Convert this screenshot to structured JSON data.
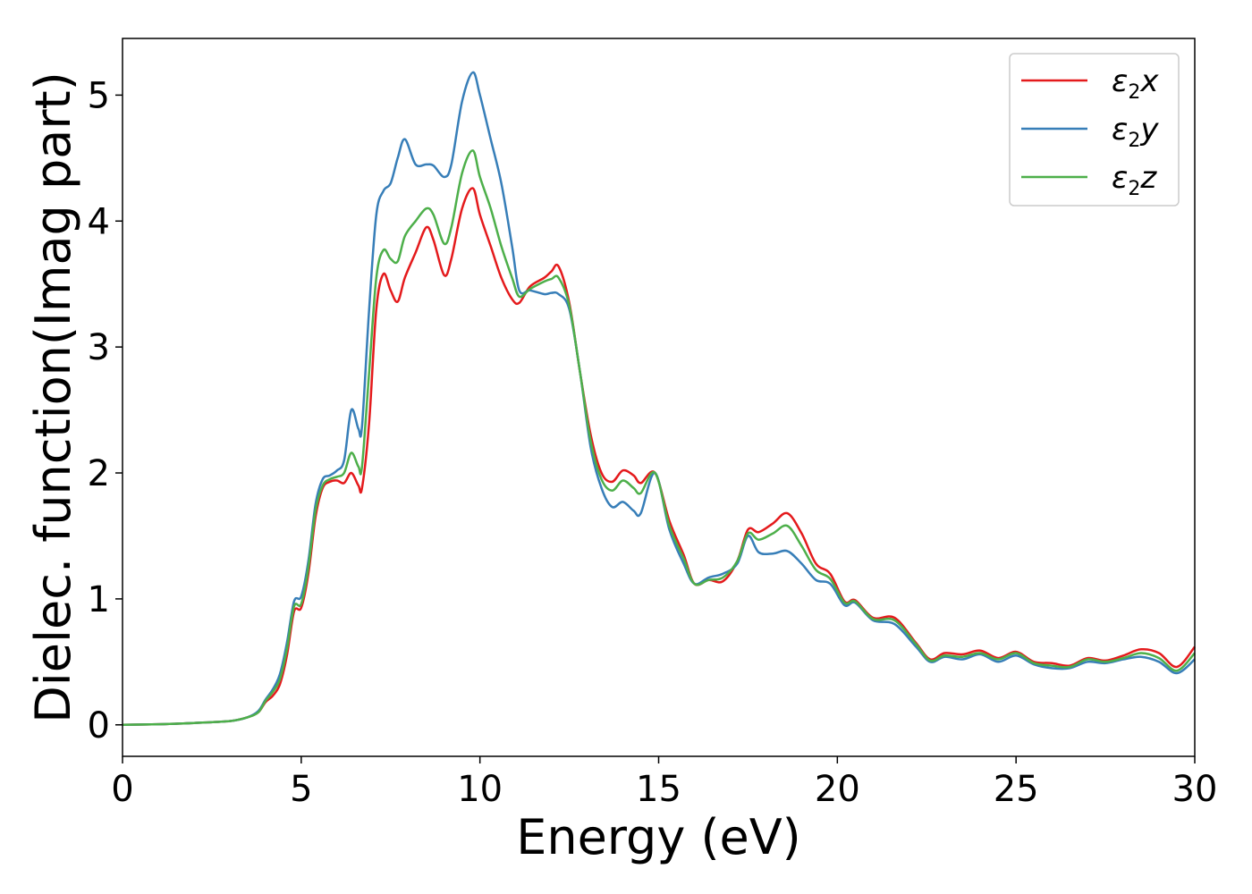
{
  "chart_data": {
    "type": "line",
    "xlabel": "Energy (eV)",
    "ylabel": "Dielec. function(Imag part)",
    "xlim": [
      0,
      30
    ],
    "ylim": [
      -0.25,
      5.45
    ],
    "xticks": [
      0,
      5,
      10,
      15,
      20,
      25,
      30
    ],
    "yticks": [
      0,
      1,
      2,
      3,
      4,
      5
    ],
    "grid": false,
    "legend_position": "top-right",
    "series": [
      {
        "name": "ε₂x",
        "legend_base": "ε",
        "legend_sub": "2",
        "legend_var": "x",
        "color": "#e41a1c",
        "points": [
          [
            0,
            0
          ],
          [
            1,
            0.005
          ],
          [
            2,
            0.015
          ],
          [
            3,
            0.03
          ],
          [
            3.5,
            0.06
          ],
          [
            3.8,
            0.1
          ],
          [
            4.0,
            0.18
          ],
          [
            4.2,
            0.23
          ],
          [
            4.4,
            0.32
          ],
          [
            4.6,
            0.55
          ],
          [
            4.8,
            0.9
          ],
          [
            5.0,
            0.93
          ],
          [
            5.2,
            1.2
          ],
          [
            5.4,
            1.65
          ],
          [
            5.6,
            1.88
          ],
          [
            5.8,
            1.93
          ],
          [
            6.0,
            1.94
          ],
          [
            6.2,
            1.92
          ],
          [
            6.4,
            2.0
          ],
          [
            6.6,
            1.9
          ],
          [
            6.7,
            1.88
          ],
          [
            6.9,
            2.4
          ],
          [
            7.1,
            3.3
          ],
          [
            7.3,
            3.58
          ],
          [
            7.5,
            3.45
          ],
          [
            7.7,
            3.36
          ],
          [
            7.9,
            3.55
          ],
          [
            8.2,
            3.75
          ],
          [
            8.5,
            3.95
          ],
          [
            8.7,
            3.85
          ],
          [
            9.0,
            3.57
          ],
          [
            9.2,
            3.7
          ],
          [
            9.5,
            4.1
          ],
          [
            9.8,
            4.26
          ],
          [
            10.0,
            4.05
          ],
          [
            10.3,
            3.8
          ],
          [
            10.6,
            3.55
          ],
          [
            10.9,
            3.38
          ],
          [
            11.1,
            3.35
          ],
          [
            11.4,
            3.48
          ],
          [
            11.8,
            3.55
          ],
          [
            12.0,
            3.6
          ],
          [
            12.2,
            3.64
          ],
          [
            12.5,
            3.35
          ],
          [
            12.8,
            2.8
          ],
          [
            13.1,
            2.3
          ],
          [
            13.4,
            2.0
          ],
          [
            13.7,
            1.93
          ],
          [
            14.0,
            2.02
          ],
          [
            14.3,
            1.98
          ],
          [
            14.5,
            1.92
          ],
          [
            14.9,
            2.0
          ],
          [
            15.3,
            1.62
          ],
          [
            15.7,
            1.35
          ],
          [
            16.0,
            1.12
          ],
          [
            16.4,
            1.15
          ],
          [
            16.8,
            1.14
          ],
          [
            17.2,
            1.3
          ],
          [
            17.5,
            1.55
          ],
          [
            17.8,
            1.53
          ],
          [
            18.2,
            1.6
          ],
          [
            18.6,
            1.68
          ],
          [
            19.0,
            1.52
          ],
          [
            19.4,
            1.28
          ],
          [
            19.8,
            1.2
          ],
          [
            20.2,
            0.98
          ],
          [
            20.5,
            0.99
          ],
          [
            21.0,
            0.85
          ],
          [
            21.6,
            0.85
          ],
          [
            22.2,
            0.65
          ],
          [
            22.6,
            0.52
          ],
          [
            23.0,
            0.57
          ],
          [
            23.5,
            0.56
          ],
          [
            24.0,
            0.59
          ],
          [
            24.5,
            0.53
          ],
          [
            25.0,
            0.58
          ],
          [
            25.5,
            0.5
          ],
          [
            26.0,
            0.49
          ],
          [
            26.5,
            0.47
          ],
          [
            27.0,
            0.53
          ],
          [
            27.5,
            0.51
          ],
          [
            28.0,
            0.55
          ],
          [
            28.5,
            0.6
          ],
          [
            29.0,
            0.57
          ],
          [
            29.5,
            0.46
          ],
          [
            30.0,
            0.62
          ]
        ]
      },
      {
        "name": "ε₂y",
        "legend_base": "ε",
        "legend_sub": "2",
        "legend_var": "y",
        "color": "#377eb8",
        "points": [
          [
            0,
            0
          ],
          [
            1,
            0.005
          ],
          [
            2,
            0.015
          ],
          [
            3,
            0.03
          ],
          [
            3.5,
            0.06
          ],
          [
            3.8,
            0.11
          ],
          [
            4.0,
            0.2
          ],
          [
            4.2,
            0.28
          ],
          [
            4.4,
            0.4
          ],
          [
            4.6,
            0.65
          ],
          [
            4.8,
            0.98
          ],
          [
            5.0,
            1.02
          ],
          [
            5.2,
            1.3
          ],
          [
            5.4,
            1.75
          ],
          [
            5.6,
            1.95
          ],
          [
            5.8,
            1.98
          ],
          [
            6.0,
            2.02
          ],
          [
            6.2,
            2.1
          ],
          [
            6.4,
            2.5
          ],
          [
            6.6,
            2.35
          ],
          [
            6.7,
            2.37
          ],
          [
            6.9,
            3.3
          ],
          [
            7.1,
            4.05
          ],
          [
            7.3,
            4.24
          ],
          [
            7.5,
            4.3
          ],
          [
            7.7,
            4.5
          ],
          [
            7.9,
            4.65
          ],
          [
            8.2,
            4.45
          ],
          [
            8.5,
            4.45
          ],
          [
            8.7,
            4.44
          ],
          [
            9.0,
            4.35
          ],
          [
            9.2,
            4.45
          ],
          [
            9.5,
            4.95
          ],
          [
            9.8,
            5.18
          ],
          [
            10.0,
            5.0
          ],
          [
            10.3,
            4.65
          ],
          [
            10.6,
            4.3
          ],
          [
            10.9,
            3.8
          ],
          [
            11.1,
            3.45
          ],
          [
            11.4,
            3.45
          ],
          [
            11.8,
            3.42
          ],
          [
            12.0,
            3.43
          ],
          [
            12.2,
            3.42
          ],
          [
            12.5,
            3.3
          ],
          [
            12.8,
            2.8
          ],
          [
            13.1,
            2.2
          ],
          [
            13.4,
            1.88
          ],
          [
            13.7,
            1.73
          ],
          [
            14.0,
            1.77
          ],
          [
            14.3,
            1.7
          ],
          [
            14.5,
            1.68
          ],
          [
            14.9,
            2.0
          ],
          [
            15.3,
            1.55
          ],
          [
            15.7,
            1.28
          ],
          [
            16.0,
            1.12
          ],
          [
            16.4,
            1.17
          ],
          [
            16.8,
            1.2
          ],
          [
            17.2,
            1.28
          ],
          [
            17.5,
            1.5
          ],
          [
            17.8,
            1.37
          ],
          [
            18.2,
            1.36
          ],
          [
            18.6,
            1.38
          ],
          [
            19.0,
            1.28
          ],
          [
            19.4,
            1.15
          ],
          [
            19.8,
            1.12
          ],
          [
            20.2,
            0.95
          ],
          [
            20.5,
            0.97
          ],
          [
            21.0,
            0.83
          ],
          [
            21.6,
            0.8
          ],
          [
            22.2,
            0.62
          ],
          [
            22.6,
            0.5
          ],
          [
            23.0,
            0.54
          ],
          [
            23.5,
            0.52
          ],
          [
            24.0,
            0.56
          ],
          [
            24.5,
            0.5
          ],
          [
            25.0,
            0.55
          ],
          [
            25.5,
            0.48
          ],
          [
            26.0,
            0.45
          ],
          [
            26.5,
            0.45
          ],
          [
            27.0,
            0.5
          ],
          [
            27.5,
            0.49
          ],
          [
            28.0,
            0.52
          ],
          [
            28.5,
            0.54
          ],
          [
            29.0,
            0.5
          ],
          [
            29.5,
            0.41
          ],
          [
            30.0,
            0.52
          ]
        ]
      },
      {
        "name": "ε₂z",
        "legend_base": "ε",
        "legend_sub": "2",
        "legend_var": "z",
        "color": "#4daf4a",
        "points": [
          [
            0,
            0
          ],
          [
            1,
            0.005
          ],
          [
            2,
            0.015
          ],
          [
            3,
            0.03
          ],
          [
            3.5,
            0.06
          ],
          [
            3.8,
            0.1
          ],
          [
            4.0,
            0.19
          ],
          [
            4.2,
            0.26
          ],
          [
            4.4,
            0.36
          ],
          [
            4.6,
            0.6
          ],
          [
            4.8,
            0.94
          ],
          [
            5.0,
            0.96
          ],
          [
            5.2,
            1.25
          ],
          [
            5.4,
            1.7
          ],
          [
            5.6,
            1.9
          ],
          [
            5.8,
            1.95
          ],
          [
            6.0,
            1.97
          ],
          [
            6.2,
            2.0
          ],
          [
            6.4,
            2.16
          ],
          [
            6.6,
            2.05
          ],
          [
            6.7,
            2.05
          ],
          [
            6.9,
            2.8
          ],
          [
            7.1,
            3.55
          ],
          [
            7.3,
            3.77
          ],
          [
            7.5,
            3.7
          ],
          [
            7.7,
            3.68
          ],
          [
            7.9,
            3.88
          ],
          [
            8.2,
            4.0
          ],
          [
            8.5,
            4.1
          ],
          [
            8.7,
            4.05
          ],
          [
            9.0,
            3.82
          ],
          [
            9.2,
            3.95
          ],
          [
            9.5,
            4.38
          ],
          [
            9.8,
            4.56
          ],
          [
            10.0,
            4.35
          ],
          [
            10.3,
            4.1
          ],
          [
            10.6,
            3.8
          ],
          [
            10.9,
            3.55
          ],
          [
            11.1,
            3.4
          ],
          [
            11.4,
            3.46
          ],
          [
            11.8,
            3.52
          ],
          [
            12.0,
            3.54
          ],
          [
            12.2,
            3.55
          ],
          [
            12.5,
            3.33
          ],
          [
            12.8,
            2.8
          ],
          [
            13.1,
            2.25
          ],
          [
            13.4,
            1.95
          ],
          [
            13.7,
            1.86
          ],
          [
            14.0,
            1.94
          ],
          [
            14.3,
            1.88
          ],
          [
            14.5,
            1.84
          ],
          [
            14.9,
            2.0
          ],
          [
            15.3,
            1.58
          ],
          [
            15.7,
            1.32
          ],
          [
            16.0,
            1.12
          ],
          [
            16.4,
            1.15
          ],
          [
            16.8,
            1.17
          ],
          [
            17.2,
            1.3
          ],
          [
            17.5,
            1.52
          ],
          [
            17.8,
            1.47
          ],
          [
            18.2,
            1.52
          ],
          [
            18.6,
            1.58
          ],
          [
            19.0,
            1.42
          ],
          [
            19.4,
            1.23
          ],
          [
            19.8,
            1.16
          ],
          [
            20.2,
            0.97
          ],
          [
            20.5,
            0.98
          ],
          [
            21.0,
            0.84
          ],
          [
            21.6,
            0.83
          ],
          [
            22.2,
            0.64
          ],
          [
            22.6,
            0.51
          ],
          [
            23.0,
            0.55
          ],
          [
            23.5,
            0.54
          ],
          [
            24.0,
            0.57
          ],
          [
            24.5,
            0.52
          ],
          [
            25.0,
            0.57
          ],
          [
            25.5,
            0.49
          ],
          [
            26.0,
            0.47
          ],
          [
            26.5,
            0.46
          ],
          [
            27.0,
            0.52
          ],
          [
            27.5,
            0.5
          ],
          [
            28.0,
            0.53
          ],
          [
            28.5,
            0.57
          ],
          [
            29.0,
            0.53
          ],
          [
            29.5,
            0.43
          ],
          [
            30.0,
            0.57
          ]
        ]
      }
    ]
  }
}
